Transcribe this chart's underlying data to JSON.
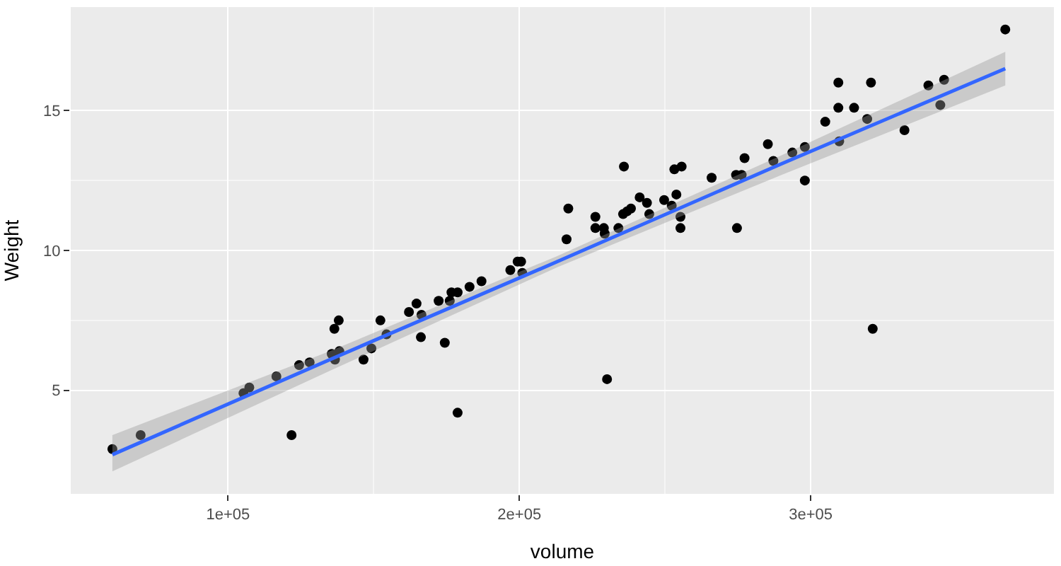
{
  "chart_data": {
    "type": "scatter",
    "xlabel": "volume",
    "ylabel": "Weight",
    "x": [
      60300,
      70000,
      105300,
      107300,
      116600,
      124400,
      128000,
      121800,
      135600,
      136700,
      138200,
      136500,
      138000,
      146500,
      149200,
      152300,
      154400,
      162100,
      164700,
      166400,
      166200,
      172300,
      174400,
      176100,
      176700,
      178800,
      178800,
      182900,
      187000,
      196900,
      199400,
      200600,
      201000,
      216200,
      216800,
      226100,
      226100,
      229000,
      229300,
      230100,
      234000,
      235900,
      235600,
      237000,
      238300,
      241300,
      243800,
      244600,
      249700,
      252300,
      253200,
      255700,
      253900,
      255300,
      255300,
      266000,
      274700,
      274400,
      276300,
      277300,
      285300,
      287200,
      293700,
      298000,
      298000,
      305000,
      309500,
      309500,
      309800,
      314900,
      319400,
      320700,
      321300,
      332200,
      340400,
      344500,
      345800,
      366800
    ],
    "series": [
      {
        "color": "#000000",
        "marker": "circle",
        "values": [
          2.9,
          3.4,
          4.9,
          5.1,
          5.5,
          5.9,
          6.0,
          3.4,
          6.3,
          6.1,
          6.4,
          7.2,
          7.5,
          6.1,
          6.5,
          7.5,
          7.0,
          7.8,
          8.1,
          7.7,
          6.9,
          8.2,
          6.7,
          8.2,
          8.5,
          8.5,
          4.2,
          8.7,
          8.9,
          9.3,
          9.6,
          9.6,
          9.2,
          10.4,
          11.5,
          11.2,
          10.8,
          10.8,
          10.6,
          5.4,
          10.8,
          13.0,
          11.3,
          11.4,
          11.5,
          11.9,
          11.7,
          11.3,
          11.8,
          11.6,
          12.9,
          13.0,
          12.0,
          11.2,
          10.8,
          12.6,
          10.8,
          12.7,
          12.7,
          13.3,
          13.8,
          13.2,
          13.5,
          13.7,
          12.5,
          14.6,
          15.1,
          16.0,
          13.9,
          15.1,
          14.7,
          16.0,
          7.2,
          14.3,
          15.9,
          15.2,
          16.1,
          17.9
        ]
      },
      {
        "type": "line",
        "color": "#3366ff",
        "marker": "none",
        "line_style": "solid",
        "x": [
          60300,
          135000,
          213000,
          290000,
          366800
        ],
        "values": [
          2.7,
          6.1,
          9.6,
          13.1,
          16.5
        ],
        "lower": [
          2.1,
          5.7,
          9.4,
          12.7,
          15.9
        ],
        "upper": [
          3.4,
          6.4,
          9.8,
          13.4,
          17.1
        ]
      }
    ],
    "xlim": [
      46000,
      383500
    ],
    "ylim": [
      1.3,
      18.7
    ],
    "xticks": [
      {
        "value": 100000,
        "label": "1e+05"
      },
      {
        "value": 200000,
        "label": "2e+05"
      },
      {
        "value": 300000,
        "label": "3e+05"
      }
    ],
    "yticks": [
      5,
      10,
      15
    ],
    "grid": true
  }
}
